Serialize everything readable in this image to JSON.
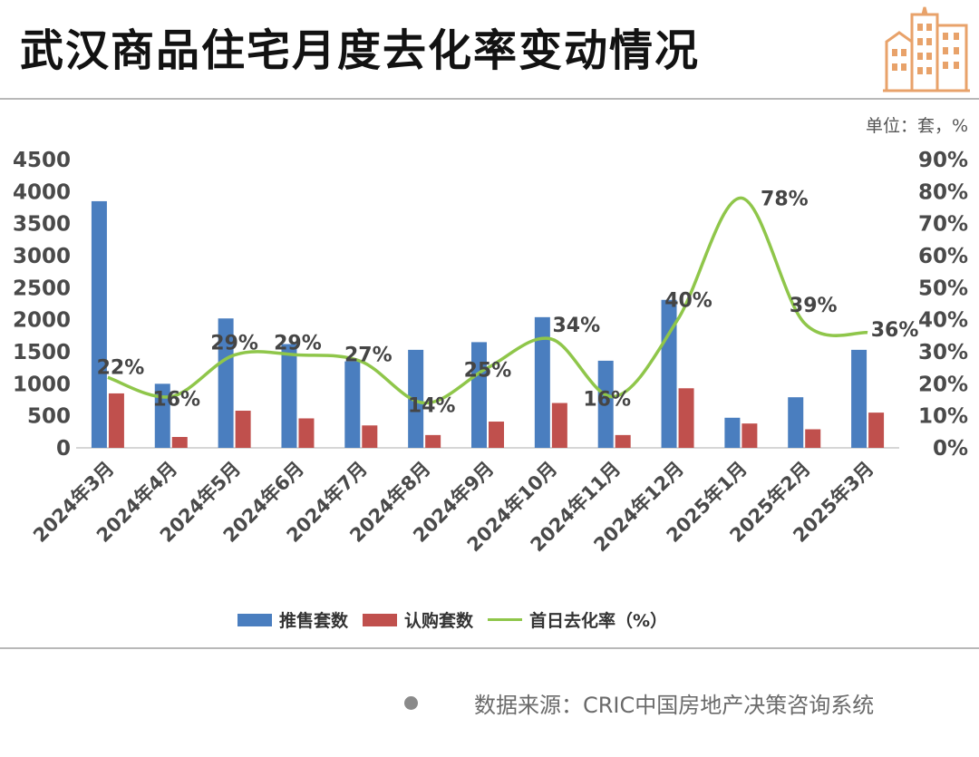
{
  "title": "武汉商品住宅月度去化率变动情况",
  "unit_label": "单位：套，%",
  "source": "数据来源：CRIC中国房地产决策咨询系统",
  "colors": {
    "launched": "#4a7ebf",
    "subscribed": "#c0504d",
    "rate": "#8fc64a",
    "logo": "#e8a26a"
  },
  "logo_icon": "city-buildings-icon",
  "chart_data": {
    "type": "bar",
    "categories": [
      "2024年3月",
      "2024年4月",
      "2024年5月",
      "2024年6月",
      "2024年7月",
      "2024年8月",
      "2024年9月",
      "2024年10月",
      "2024年11月",
      "2024年12月",
      "2025年1月",
      "2025年2月",
      "2025年3月"
    ],
    "series": [
      {
        "name": "推售套数",
        "type": "bar",
        "axis": "left",
        "values": [
          3850,
          1000,
          2020,
          1620,
          1350,
          1530,
          1650,
          2040,
          1360,
          2310,
          470,
          790,
          1530
        ]
      },
      {
        "name": "认购套数",
        "type": "bar",
        "axis": "left",
        "values": [
          850,
          170,
          580,
          460,
          350,
          200,
          410,
          700,
          200,
          930,
          380,
          290,
          550
        ]
      },
      {
        "name": "首日去化率（%）",
        "type": "line",
        "axis": "right",
        "smooth": true,
        "values": [
          22,
          16,
          29,
          29,
          27,
          14,
          25,
          34,
          16,
          40,
          78,
          39,
          36
        ],
        "labels": [
          "22%",
          "16%",
          "29%",
          "29%",
          "27%",
          "14%",
          "25%",
          "34%",
          "16%",
          "40%",
          "78%",
          "39%",
          "36%"
        ]
      }
    ],
    "y_left": {
      "min": 0,
      "max": 4500,
      "ticks": [
        "0",
        "500",
        "1000",
        "1500",
        "2000",
        "2500",
        "3000",
        "3500",
        "4000",
        "4500"
      ]
    },
    "y_right": {
      "min": 0,
      "max": 90,
      "ticks": [
        "0%",
        "10%",
        "20%",
        "30%",
        "40%",
        "50%",
        "60%",
        "70%",
        "80%",
        "90%"
      ]
    },
    "grid": false,
    "legend_position": "bottom"
  }
}
